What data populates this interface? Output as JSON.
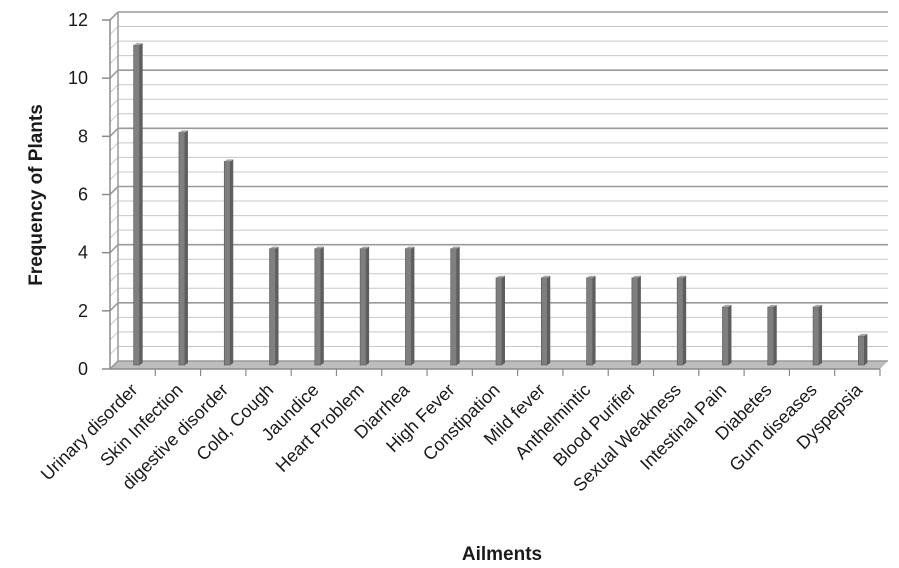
{
  "chart_data": {
    "type": "bar",
    "title": "",
    "xlabel": "Ailments",
    "ylabel": "Frequency of Plants",
    "categories": [
      "Urinary disorder",
      "Skin Infection",
      "digestive disorder",
      "Cold, Cough",
      "Jaundice",
      "Heart Problem",
      "Diarrhea",
      "High Fever",
      "Constipation",
      "Mild fever",
      "Anthelmintic",
      "Blood Purifier",
      "Sexual Weakness",
      "Intestinal Pain",
      "Diabetes",
      "Gum diseases",
      "Dyspepsia"
    ],
    "values": [
      11,
      8,
      7,
      4,
      4,
      4,
      4,
      4,
      3,
      3,
      3,
      3,
      3,
      2,
      2,
      2,
      1
    ],
    "ylim": [
      0,
      12
    ],
    "yticks": [
      0,
      2,
      4,
      6,
      8,
      10,
      12
    ],
    "grid": true,
    "bar_color": "#7f7f7f"
  }
}
